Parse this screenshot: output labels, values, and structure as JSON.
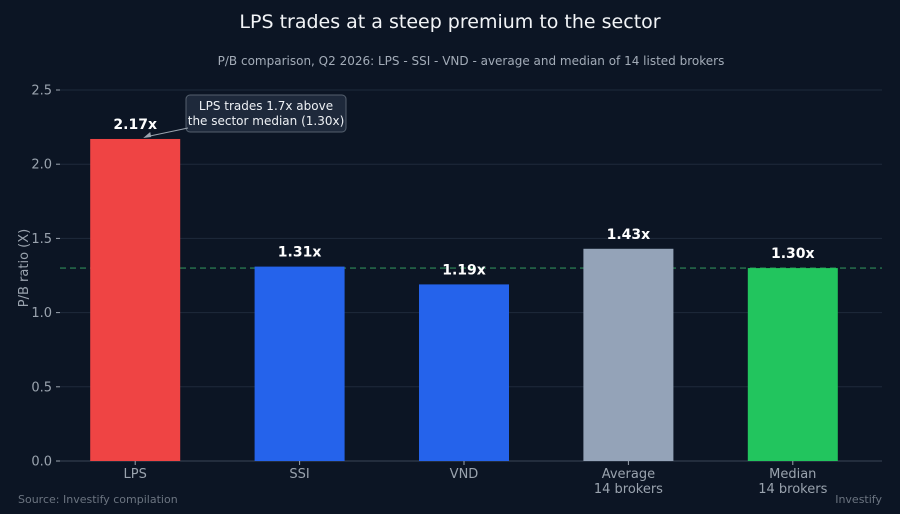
{
  "chart_data": {
    "type": "bar",
    "title": "LPS trades at a steep premium to the sector",
    "subtitle": "P/B comparison, Q2 2026: LPS - SSI - VND - average and median of 14 listed brokers",
    "ylabel": "P/B ratio (X)",
    "ylim": [
      0,
      2.5
    ],
    "yticks": [
      "0.0",
      "0.5",
      "1.0",
      "1.5",
      "2.0",
      "2.5"
    ],
    "categories": [
      [
        "LPS"
      ],
      [
        "SSI"
      ],
      [
        "VND"
      ],
      [
        "Average",
        "14 brokers"
      ],
      [
        "Median",
        "14 brokers"
      ]
    ],
    "values": [
      2.17,
      1.31,
      1.19,
      1.43,
      1.3
    ],
    "value_labels": [
      "2.17x",
      "1.31x",
      "1.19x",
      "1.43x",
      "1.30x"
    ],
    "colors": [
      "#ef4444",
      "#2563eb",
      "#2563eb",
      "#94a3b8",
      "#22c55e"
    ],
    "reference_line": {
      "value": 1.3,
      "color": "#2e8b57",
      "style": "dashed"
    },
    "annotation": {
      "lines": [
        "LPS trades 1.7x above",
        "the sector median (1.30x)"
      ],
      "target_category": 0
    },
    "grid": true,
    "legend": "none",
    "source": "Source: Investify compilation",
    "credit": "Investify"
  }
}
